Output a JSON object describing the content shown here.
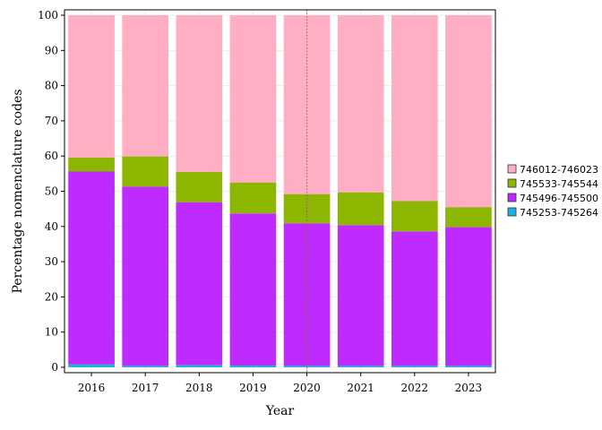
{
  "chart_data": {
    "type": "bar",
    "stacked": true,
    "title": "",
    "xlabel": "Year",
    "ylabel": "Percentage nomenclature codes",
    "ylim": [
      0,
      100
    ],
    "yticks": [
      0,
      10,
      20,
      30,
      40,
      50,
      60,
      70,
      80,
      90,
      100
    ],
    "grid": true,
    "legend_position": "right",
    "reference_line_x": "2020",
    "categories": [
      "2016",
      "2017",
      "2018",
      "2019",
      "2020",
      "2021",
      "2022",
      "2023"
    ],
    "series": [
      {
        "name": "745253-745264",
        "color": "#18b4dc",
        "values": [
          0.8,
          0.4,
          0.6,
          0.5,
          0.4,
          0.4,
          0.4,
          0.4
        ]
      },
      {
        "name": "745496-745500",
        "color": "#bf2aff",
        "values": [
          54.8,
          50.9,
          46.3,
          43.2,
          40.5,
          40.0,
          38.2,
          39.4
        ]
      },
      {
        "name": "745533-745544",
        "color": "#8db600",
        "values": [
          4.0,
          8.6,
          8.6,
          8.8,
          8.3,
          9.3,
          8.6,
          5.7
        ]
      },
      {
        "name": "746012-746023",
        "color": "#ffaec4",
        "values": [
          40.4,
          40.1,
          44.5,
          47.5,
          50.8,
          50.3,
          52.8,
          54.5
        ]
      }
    ]
  }
}
